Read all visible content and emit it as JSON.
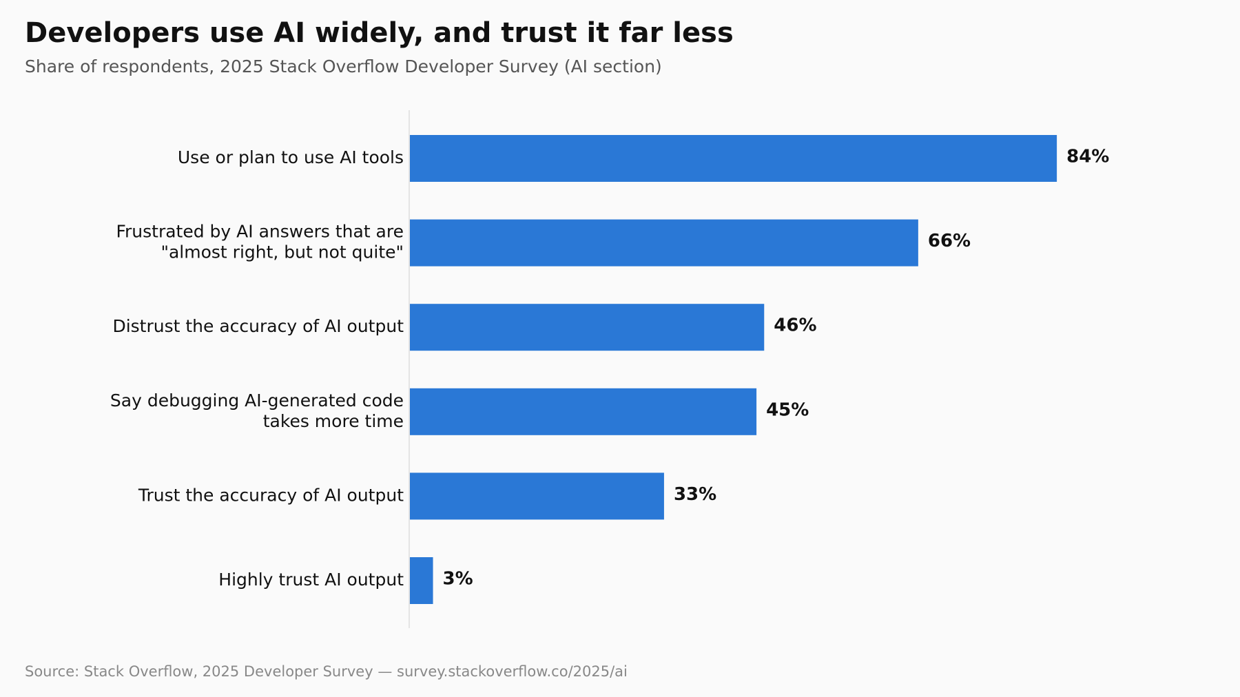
{
  "chart_data": {
    "type": "bar",
    "orientation": "horizontal",
    "title": "Developers use AI widely, and trust it far less",
    "subtitle": "Share of respondents, 2025 Stack Overflow Developer Survey (AI section)",
    "source": "Source: Stack Overflow, 2025 Developer Survey — survey.stackoverflow.co/2025/ai",
    "categories": [
      "Use or plan to use AI tools",
      "Frustrated by AI answers that are\n\"almost right, but not quite\"",
      "Distrust the accuracy of AI output",
      "Say debugging AI-generated code\ntakes more time",
      "Trust the accuracy of AI output",
      "Highly trust AI output"
    ],
    "values": [
      84,
      66,
      46,
      45,
      33,
      3
    ],
    "value_labels": [
      "84%",
      "66%",
      "46%",
      "45%",
      "33%",
      "3%"
    ],
    "unit": "%",
    "xlim": [
      0,
      100
    ],
    "grid": false,
    "legend": "none",
    "colors": {
      "bar": "#2a78d6",
      "axis_line": "#dddddd",
      "title": "#111111",
      "subtitle": "#555555",
      "label": "#111111",
      "source": "#888888",
      "background": "#fafafa"
    }
  }
}
